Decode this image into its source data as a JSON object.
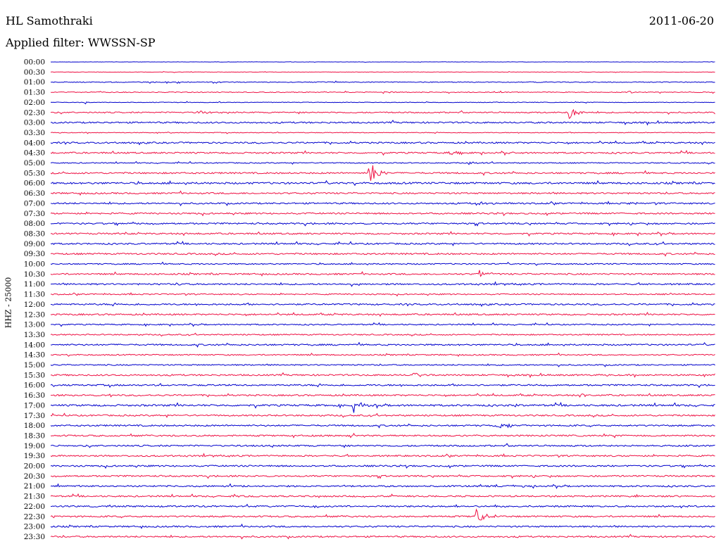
{
  "header": {
    "station": "HL Samothraki",
    "date": "2011-06-20",
    "filter_label": "Applied filter: WWSSN-SP",
    "channel_label": "HHZ - 25000"
  },
  "chart_data": {
    "type": "line",
    "title": "HL Samothraki",
    "subtitle": "Applied filter: WWSSN-SP",
    "ylabel": "HHZ - 25000",
    "trace_colors": [
      "#0000cc",
      "#ee1144"
    ],
    "rows": [
      {
        "time": "00:00",
        "noise": 0.3,
        "events": []
      },
      {
        "time": "00:30",
        "noise": 0.4,
        "events": []
      },
      {
        "time": "01:00",
        "noise": 0.8,
        "events": [
          {
            "x": 0.19,
            "amp": 1.5,
            "dur": 0.02
          }
        ]
      },
      {
        "time": "01:30",
        "noise": 0.8,
        "events": [
          {
            "x": 0.5,
            "amp": 2,
            "dur": 0.02
          },
          {
            "x": 0.87,
            "amp": 3,
            "dur": 0.01
          },
          {
            "x": 0.96,
            "amp": 1.5,
            "dur": 0.01
          }
        ]
      },
      {
        "time": "02:00",
        "noise": 0.6,
        "events": [
          {
            "x": 0.052,
            "amp": 5,
            "dur": 0.003
          }
        ]
      },
      {
        "time": "02:30",
        "noise": 1.2,
        "events": [
          {
            "x": 0.22,
            "amp": 2,
            "dur": 0.05
          },
          {
            "x": 0.78,
            "amp": 10,
            "dur": 0.025
          }
        ]
      },
      {
        "time": "03:00",
        "noise": 1.5,
        "events": []
      },
      {
        "time": "03:30",
        "noise": 0.7,
        "events": []
      },
      {
        "time": "04:00",
        "noise": 1.5,
        "events": []
      },
      {
        "time": "04:30",
        "noise": 1.5,
        "events": [
          {
            "x": 0.6,
            "amp": 2.5,
            "dur": 0.03
          },
          {
            "x": 0.69,
            "amp": 2,
            "dur": 0.01
          }
        ]
      },
      {
        "time": "05:00",
        "noise": 1.0,
        "events": [
          {
            "x": 0.63,
            "amp": 2,
            "dur": 0.03
          }
        ]
      },
      {
        "time": "05:30",
        "noise": 1.5,
        "events": [
          {
            "x": 0.48,
            "amp": 18,
            "dur": 0.03
          }
        ]
      },
      {
        "time": "06:00",
        "noise": 1.8,
        "events": []
      },
      {
        "time": "06:30",
        "noise": 1.5,
        "events": []
      },
      {
        "time": "07:00",
        "noise": 1.5,
        "events": [
          {
            "x": 0.64,
            "amp": 3,
            "dur": 0.05
          },
          {
            "x": 0.87,
            "amp": 2,
            "dur": 0.02
          }
        ]
      },
      {
        "time": "07:30",
        "noise": 1.5,
        "events": []
      },
      {
        "time": "08:00",
        "noise": 1.5,
        "events": []
      },
      {
        "time": "08:30",
        "noise": 1.5,
        "events": [
          {
            "x": 0.1,
            "amp": 3,
            "dur": 0.015
          }
        ]
      },
      {
        "time": "09:00",
        "noise": 1.5,
        "events": []
      },
      {
        "time": "09:30",
        "noise": 1.5,
        "events": []
      },
      {
        "time": "10:00",
        "noise": 1.2,
        "events": []
      },
      {
        "time": "10:30",
        "noise": 1.5,
        "events": [
          {
            "x": 0.645,
            "amp": 8,
            "dur": 0.02
          }
        ]
      },
      {
        "time": "11:00",
        "noise": 1.5,
        "events": [
          {
            "x": 0.19,
            "amp": 7,
            "dur": 0.008
          },
          {
            "x": 0.463,
            "amp": 8,
            "dur": 0.003
          }
        ]
      },
      {
        "time": "11:30",
        "noise": 1.2,
        "events": [
          {
            "x": 0.93,
            "amp": 2,
            "dur": 0.01
          }
        ]
      },
      {
        "time": "12:00",
        "noise": 1.5,
        "events": []
      },
      {
        "time": "12:30",
        "noise": 1.5,
        "events": []
      },
      {
        "time": "13:00",
        "noise": 1.2,
        "events": []
      },
      {
        "time": "13:30",
        "noise": 1.2,
        "events": []
      },
      {
        "time": "14:00",
        "noise": 1.5,
        "events": []
      },
      {
        "time": "14:30",
        "noise": 1.2,
        "events": []
      },
      {
        "time": "15:00",
        "noise": 1.2,
        "events": []
      },
      {
        "time": "15:30",
        "noise": 1.5,
        "events": [
          {
            "x": 0.545,
            "amp": 5,
            "dur": 0.02
          }
        ]
      },
      {
        "time": "16:00",
        "noise": 1.5,
        "events": [
          {
            "x": 0.73,
            "amp": 2,
            "dur": 0.004
          }
        ]
      },
      {
        "time": "16:30",
        "noise": 1.5,
        "events": [
          {
            "x": 0.09,
            "amp": 3,
            "dur": 0.01
          },
          {
            "x": 0.8,
            "amp": 3,
            "dur": 0.015
          }
        ]
      },
      {
        "time": "17:00",
        "noise": 1.8,
        "events": [
          {
            "x": 0.455,
            "amp": 12,
            "dur": 0.02
          },
          {
            "x": 0.48,
            "amp": 4,
            "dur": 0.008
          },
          {
            "x": 0.7,
            "amp": 3,
            "dur": 0.005
          }
        ]
      },
      {
        "time": "17:30",
        "noise": 1.5,
        "events": []
      },
      {
        "time": "18:00",
        "noise": 1.5,
        "events": [
          {
            "x": 0.67,
            "amp": 4,
            "dur": 0.05
          }
        ]
      },
      {
        "time": "18:30",
        "noise": 1.5,
        "events": []
      },
      {
        "time": "19:00",
        "noise": 1.5,
        "events": []
      },
      {
        "time": "19:30",
        "noise": 1.5,
        "events": []
      },
      {
        "time": "20:00",
        "noise": 1.5,
        "events": []
      },
      {
        "time": "20:30",
        "noise": 1.5,
        "events": []
      },
      {
        "time": "21:00",
        "noise": 1.5,
        "events": [
          {
            "x": 0.27,
            "amp": 3,
            "dur": 0.02
          },
          {
            "x": 0.71,
            "amp": 2,
            "dur": 0.015
          }
        ]
      },
      {
        "time": "21:30",
        "noise": 1.5,
        "events": [
          {
            "x": 0.28,
            "amp": 2.5,
            "dur": 0.008
          }
        ]
      },
      {
        "time": "22:00",
        "noise": 1.5,
        "events": []
      },
      {
        "time": "22:30",
        "noise": 1.5,
        "events": [
          {
            "x": 0.64,
            "amp": 10,
            "dur": 0.035
          }
        ]
      },
      {
        "time": "23:00",
        "noise": 1.5,
        "events": []
      },
      {
        "time": "23:30",
        "noise": 1.5,
        "events": []
      }
    ]
  }
}
